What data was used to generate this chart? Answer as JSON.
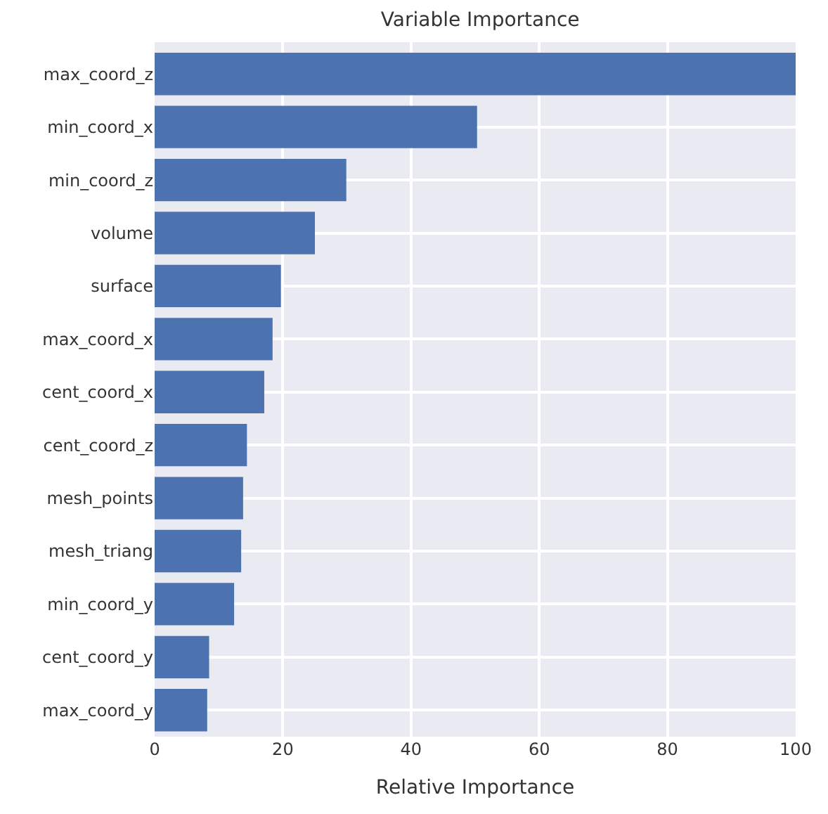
{
  "chart_data": {
    "type": "bar",
    "orientation": "horizontal",
    "title": "Variable Importance",
    "xlabel": "Relative Importance",
    "categories": [
      "max_coord_z",
      "min_coord_x",
      "min_coord_z",
      "volume",
      "surface",
      "max_coord_x",
      "cent_coord_x",
      "cent_coord_z",
      "mesh_points",
      "mesh_triang",
      "min_coord_y",
      "cent_coord_y",
      "max_coord_y"
    ],
    "values": [
      100,
      50.3,
      29.9,
      25,
      19.7,
      18.4,
      17.1,
      14.4,
      13.8,
      13.5,
      12.4,
      8.5,
      8.2
    ],
    "color": "#4c72b0",
    "xlim": [
      0,
      100
    ],
    "xticks": [
      0,
      20,
      40,
      60,
      80,
      100
    ],
    "grid": true
  }
}
